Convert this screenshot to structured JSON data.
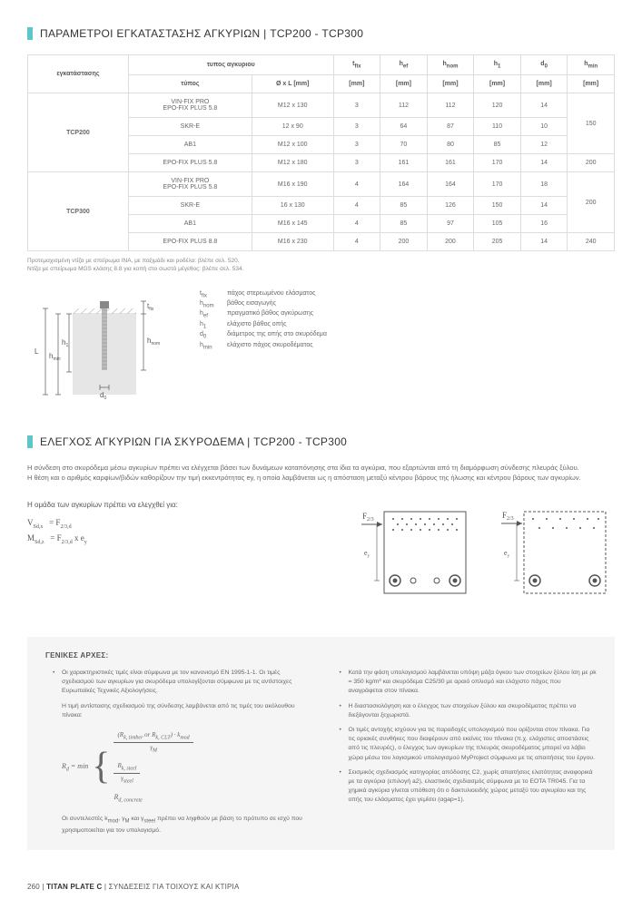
{
  "section1": {
    "title": "ΠΑΡΑΜΕΤΡΟΙ ΕΓΚΑΤΑΣΤΑΣΗΣ ΑΓΚΥΡΙΩΝ | TCP200 - TCP300",
    "footnote": "Προτεμαχισμένη ντίζα με σπείρωμα INA, με παξιμάδι και ροδέλα: βλέπε σελ. 520.\nΝτίζα με σπείρωμα MGS κλάσης 8.8 για κοπή στο σωστό μέγεθος: βλέπε σελ. 534."
  },
  "table": {
    "headers": {
      "c1": "εγκατάστασης",
      "c2": "τυπος αγκυριου",
      "c2a": "τύπος",
      "c2b": "Ø x L [mm]",
      "c3": "t",
      "c3sub": "fix",
      "c3u": "[mm]",
      "c4": "h",
      "c4sub": "ef",
      "c4u": "[mm]",
      "c5": "h",
      "c5sub": "nom",
      "c5u": "[mm]",
      "c6": "h",
      "c6sub": "1",
      "c6u": "[mm]",
      "c7": "d",
      "c7sub": "0",
      "c7u": "[mm]",
      "c8": "h",
      "c8sub": "min",
      "c8u": "[mm]"
    },
    "groups": [
      {
        "name": "TCP200",
        "rows": [
          {
            "type": "VIN-FIX PRO\nEPO-FIX PLUS 5.8",
            "dim": "M12 x 130",
            "tfix": "3",
            "hef": "112",
            "hnom": "112",
            "h1": "120",
            "d0": "14",
            "hmin": "150"
          },
          {
            "type": "SKR-E",
            "dim": "12 x 90",
            "tfix": "3",
            "hef": "64",
            "hnom": "87",
            "h1": "110",
            "d0": "10",
            "hmin": ""
          },
          {
            "type": "AB1",
            "dim": "M12 x 100",
            "tfix": "3",
            "hef": "70",
            "hnom": "80",
            "h1": "85",
            "d0": "12",
            "hmin": ""
          },
          {
            "type": "EPO-FIX PLUS 5.8",
            "dim": "M12 x 180",
            "tfix": "3",
            "hef": "161",
            "hnom": "161",
            "h1": "170",
            "d0": "14",
            "hmin": "200"
          }
        ]
      },
      {
        "name": "TCP300",
        "rows": [
          {
            "type": "VIN-FIX PRO\nEPO-FIX PLUS 5.8",
            "dim": "M16 x 190",
            "tfix": "4",
            "hef": "164",
            "hnom": "164",
            "h1": "170",
            "d0": "18",
            "hmin": "200"
          },
          {
            "type": "SKR-E",
            "dim": "16 x 130",
            "tfix": "4",
            "hef": "85",
            "hnom": "126",
            "h1": "150",
            "d0": "14",
            "hmin": ""
          },
          {
            "type": "AB1",
            "dim": "M16 x 145",
            "tfix": "4",
            "hef": "85",
            "hnom": "97",
            "h1": "105",
            "d0": "16",
            "hmin": ""
          },
          {
            "type": "EPO-FIX PLUS 8.8",
            "dim": "M16 x 230",
            "tfix": "4",
            "hef": "200",
            "hnom": "200",
            "h1": "205",
            "d0": "14",
            "hmin": "240"
          }
        ]
      }
    ]
  },
  "legend": [
    {
      "sym": "t",
      "sub": "fix",
      "desc": "πάχος στερεωμένου ελάσματος"
    },
    {
      "sym": "h",
      "sub": "nom",
      "desc": "βάθος εισαγωγής"
    },
    {
      "sym": "h",
      "sub": "ef",
      "desc": "πραγματικό βάθος αγκύρωσης"
    },
    {
      "sym": "h",
      "sub": "1",
      "desc": "ελάχιστο βάθος οπής"
    },
    {
      "sym": "d",
      "sub": "0",
      "desc": "διάμετρος της οπής στο σκυρόδεμα"
    },
    {
      "sym": "h",
      "sub": "min",
      "desc": "ελάχιστο πάχος σκυροδέματος"
    }
  ],
  "diagram_labels": {
    "L": "L",
    "hmin": "h",
    "hmin_sub": "min",
    "h1": "h",
    "h1_sub": "1",
    "tfix": "t",
    "tfix_sub": "fix",
    "hnom": "h",
    "hnom_sub": "nom",
    "d0": "d",
    "d0_sub": "0"
  },
  "section2": {
    "title": "ΕΛΕΓΧΟΣ ΑΓΚΥΡΙΩΝ ΓΙΑ ΣΚΥΡΟΔΕΜΑ | TCP200 - TCP300",
    "intro": "Η σύνδεση στο σκυρόδεμα μέσω αγκυρίων πρέπει να ελέγχεται βάσει των δυνάμεων καταπόνησης στα ίδια τα αγκύρια, που εξαρτώνται από τη διαμόρφωση σύνδεσης πλευράς ξύλου.\nΗ θέση και ο αριθμός καρφίων/βιδών καθορίζουν την τιμή εκκεντρότητας ey, η οποία λαμβάνεται ως η απόσταση μεταξύ κέντρου βάρους της ήλωσης και κέντρου βάρους των αγκυρίων.",
    "check_label": "Η ομάδα των αγκυρίων πρέπει να ελεγχθεί για:",
    "f1_left": "V",
    "f1_left_sub": "Sd,x",
    "f1_right": "= F",
    "f1_right_sub": "2/3,d",
    "f2_left": "M",
    "f2_left_sub": "Sd,z",
    "f2_right": "= F",
    "f2_right_sub": "2/3,d",
    "f2_tail": " x e",
    "f2_tail_sub": "y",
    "diag_F": "F",
    "diag_F_sub": "2/3",
    "diag_e": "e",
    "diag_e_sub": "y"
  },
  "general": {
    "title": "ΓΕΝΙΚΕΣ ΑΡΧΕΣ:",
    "left_p1": "Οι χαρακτηριστικές τιμές είναι σύμφωνα με τον κανονισμό EN 1995-1-1. Οι τιμές σχεδιασμού των αγκυρίων για σκυρόδεμα υπολογίζονται σύμφωνα με τις αντίστοιχες Ευρωπαϊκές Τεχνικές Αξιολογήσεις.",
    "left_p2": "Η τιμή αντίστασης σχεδιασμού της σύνδεσης λαμβάνεται από τις τιμές του ακόλουθου πίνακα:",
    "rd_eq": "R",
    "rd_sub": "d",
    "rd_min": "= min",
    "rd_line1_num": "(R",
    "rd_line1_num_sub1": "k, timber",
    "rd_line1_or": " or R",
    "rd_line1_num_sub2": "k, CLT",
    "rd_line1_tail": ") · k",
    "rd_line1_tail_sub": "mod",
    "rd_line1_den": "γ",
    "rd_line1_den_sub": "M",
    "rd_line2_num": "R",
    "rd_line2_num_sub": "k, steel",
    "rd_line2_den": "γ",
    "rd_line2_den_sub": "steel",
    "rd_line3": "R",
    "rd_line3_sub": "d, concrete",
    "left_p3": "Οι συντελεστές k",
    "left_p3_sub1": "mod",
    "left_p3_mid": ", γ",
    "left_p3_sub2": "M",
    "left_p3_mid2": " και γ",
    "left_p3_sub3": "steel",
    "left_p3_tail": " πρέπει να ληφθούν με βάση το πρότυπο σε ισχύ που χρησιμοποιείται για τον υπολογισμό.",
    "right_items": [
      "Κατά την φάση υπολογισμού λαμβάνεται υπόψη μάζα όγκου των στοιχείων ξύλου ίση με ρk = 350 kg/m³ και σκυρόδεμα C25/30 με αραιό οπλισμό και ελάχιστο πάχος που αναγράφεται στον πίνακα.",
      "Η διαστασιολόγηση και ο έλεγχος των στοιχείων ξύλου και σκυροδέματος πρέπει να διεξάγονται ξεχωριστά.",
      "Οι τιμές αντοχής ισχύουν για τις παραδοχές υπολογισμού που ορίζονται στον πίνακα. Για τις οριακές συνθήκες που διαφέρουν από εκείνες του πίνακα (π.χ. ελάχιστες αποστάσεις από τις πλευρές), ο έλεγχος των αγκυρίων της πλευράς σκυροδέματος μπορεί να λάβει χώρα μέσω του λογισμικού υπολογισμού MyProject σύμφωνα με τις απαιτήσεις του έργου.",
      "Σεισμικός σχεδιασμός κατηγορίας απόδοσης C2, χωρίς απαιτήσεις ελατότητας αναφορικά με τα αγκύρια (επιλογή a2), ελαστικός σχεδιασμός σύμφωνα με το EOTA TR045. Για τα χημικά αγκύρια γίνεται υπόθεση ότι ο δακτυλιοειδής χώρος μεταξύ του αγκυρίου και της οπής του ελάσματος έχει γεμίσει (αgap=1)."
    ]
  },
  "footer": {
    "page": "260",
    "sep": " | ",
    "title": "TITAN PLATE C",
    "rest": "ΣΥΝΔΕΣΕΙΣ ΓΙΑ ΤΟΙΧΟΥΣ  ΚΑΙ ΚΤΙΡΙΑ"
  },
  "colors": {
    "accent": "#5ec5c8",
    "border": "#dddddd",
    "text": "#666666",
    "bg_box": "#f5f5f5"
  }
}
